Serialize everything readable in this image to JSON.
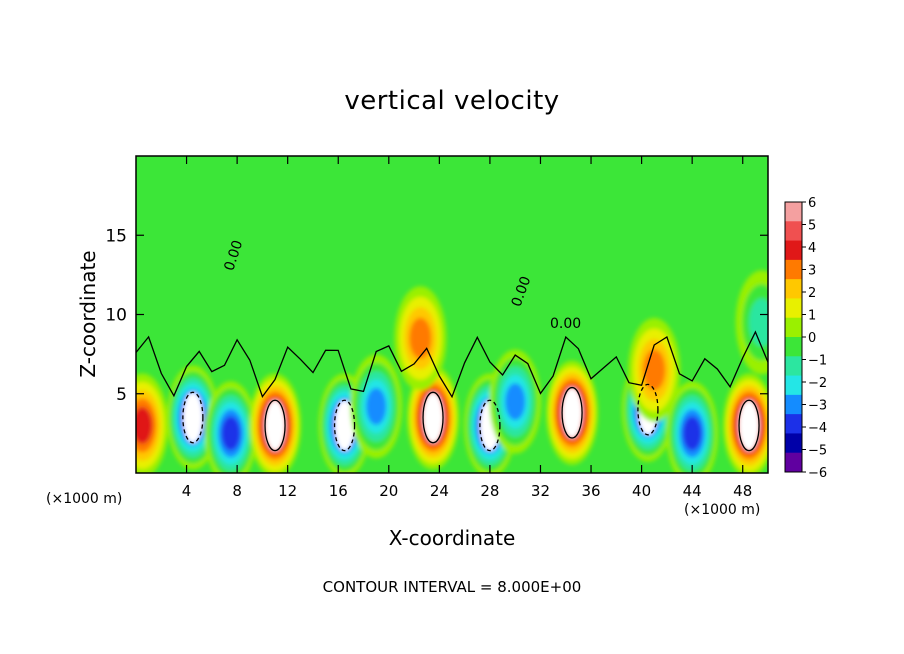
{
  "chart_data": {
    "type": "heatmap",
    "title": "vertical velocity",
    "xlabel": "X-coordinate",
    "ylabel": "Z-coordinate",
    "x_unit_label": "(×1000 m)",
    "z_unit_label": "(×1000 m)",
    "xlim": [
      0,
      50
    ],
    "ylim": [
      0,
      20
    ],
    "x_ticks": [
      4,
      8,
      12,
      16,
      20,
      24,
      28,
      32,
      36,
      40,
      44,
      48
    ],
    "y_ticks": [
      5,
      10,
      15
    ],
    "colorbar": {
      "ticks": [
        6,
        5,
        4,
        3,
        2,
        1,
        0,
        -1,
        -2,
        -3,
        -4,
        -5,
        -6
      ],
      "colors": [
        "#f4a0a0",
        "#f05050",
        "#e01818",
        "#ff7a00",
        "#ffc800",
        "#e8f000",
        "#9af000",
        "#3ce638",
        "#2ce6a0",
        "#24e6e6",
        "#148cff",
        "#1c30e8",
        "#0000a8",
        "#6000a0"
      ]
    },
    "contour_label": "0.00",
    "contour_interval_text": "CONTOUR INTERVAL = 8.000E+00",
    "features": [
      {
        "x": 4.5,
        "z": 3.5,
        "w": -6
      },
      {
        "x": 7.5,
        "z": 2.5,
        "w": -5
      },
      {
        "x": 11,
        "z": 3.0,
        "w": 6
      },
      {
        "x": 16.5,
        "z": 3.0,
        "w": -6
      },
      {
        "x": 19,
        "z": 4.2,
        "w": -4
      },
      {
        "x": 23.5,
        "z": 3.5,
        "w": 6
      },
      {
        "x": 22.5,
        "z": 8.5,
        "w": 3
      },
      {
        "x": 28,
        "z": 3.0,
        "w": -6
      },
      {
        "x": 30,
        "z": 4.5,
        "w": -4
      },
      {
        "x": 34.5,
        "z": 3.8,
        "w": 6
      },
      {
        "x": 40.5,
        "z": 4.0,
        "w": -6
      },
      {
        "x": 44,
        "z": 2.5,
        "w": -5
      },
      {
        "x": 48.5,
        "z": 3.0,
        "w": 6
      },
      {
        "x": 0.5,
        "z": 3.0,
        "w": 4
      },
      {
        "x": 41,
        "z": 6.5,
        "w": 3
      },
      {
        "x": 49.5,
        "z": 9.5,
        "w": -2
      }
    ]
  }
}
